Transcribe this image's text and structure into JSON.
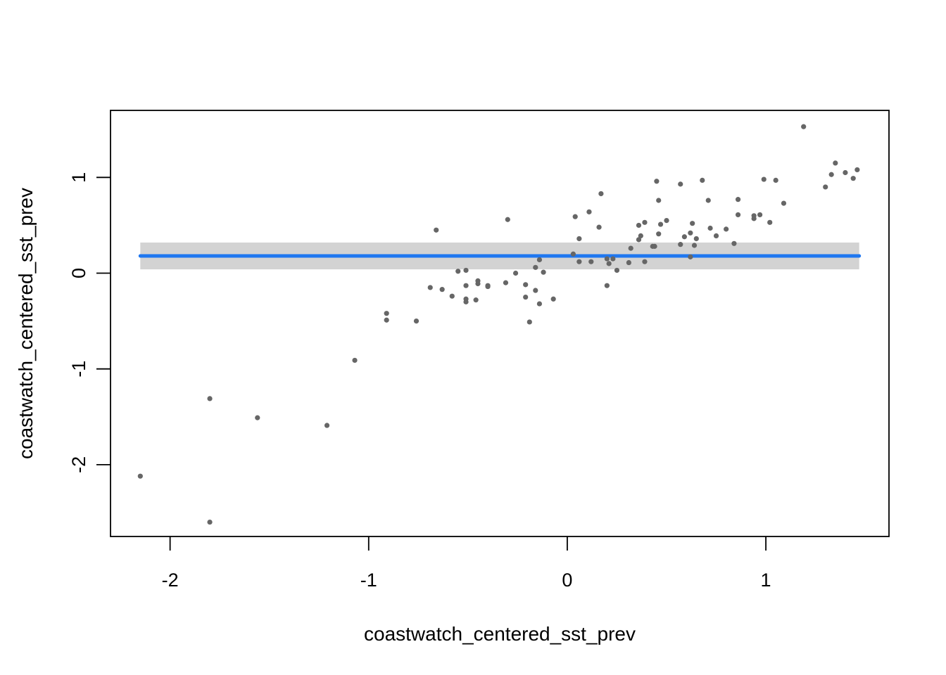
{
  "chart_data": {
    "type": "scatter",
    "title": "",
    "xlabel": "coastwatch_centered_sst_prev",
    "ylabel": "coastwatch_centered_sst_prev",
    "xlim": [
      -2.3,
      1.62
    ],
    "ylim": [
      -2.75,
      1.7
    ],
    "xticks": [
      -2,
      -1,
      0,
      1
    ],
    "yticks": [
      -2,
      -1,
      0,
      1
    ],
    "xtick_labels": [
      "-2",
      "-1",
      "0",
      "1"
    ],
    "ytick_labels": [
      "-2",
      "-1",
      "0",
      "1"
    ],
    "grid": false,
    "legend": "none",
    "point_color": "#666666",
    "fit_line_color": "#1f77f0",
    "band_color": "#d3d3d3",
    "fit_line": {
      "x": [
        -2.15,
        1.47
      ],
      "y": [
        0.18,
        0.18
      ]
    },
    "confidence_band": {
      "lower": 0.04,
      "upper": 0.32
    },
    "points": [
      [
        -2.15,
        -2.12
      ],
      [
        -1.8,
        -2.6
      ],
      [
        -1.8,
        -1.31
      ],
      [
        -1.56,
        -1.51
      ],
      [
        -1.21,
        -1.59
      ],
      [
        -1.07,
        -0.91
      ],
      [
        -0.91,
        -0.42
      ],
      [
        -0.91,
        -0.49
      ],
      [
        -0.76,
        -0.5
      ],
      [
        -0.66,
        0.45
      ],
      [
        -0.69,
        -0.15
      ],
      [
        -0.63,
        -0.17
      ],
      [
        -0.58,
        -0.24
      ],
      [
        -0.55,
        0.02
      ],
      [
        -0.51,
        0.03
      ],
      [
        -0.51,
        -0.13
      ],
      [
        -0.51,
        -0.27
      ],
      [
        -0.51,
        -0.3
      ],
      [
        -0.46,
        -0.28
      ],
      [
        -0.45,
        -0.08
      ],
      [
        -0.45,
        -0.11
      ],
      [
        -0.4,
        -0.13
      ],
      [
        -0.4,
        -0.14
      ],
      [
        -0.3,
        0.56
      ],
      [
        -0.31,
        -0.1
      ],
      [
        -0.26,
        0.0
      ],
      [
        -0.21,
        -0.12
      ],
      [
        -0.21,
        -0.25
      ],
      [
        -0.19,
        -0.51
      ],
      [
        -0.16,
        0.06
      ],
      [
        -0.16,
        -0.18
      ],
      [
        -0.14,
        0.14
      ],
      [
        -0.14,
        -0.32
      ],
      [
        -0.12,
        0.01
      ],
      [
        -0.07,
        -0.27
      ],
      [
        0.03,
        0.2
      ],
      [
        0.04,
        0.59
      ],
      [
        0.06,
        0.12
      ],
      [
        0.06,
        0.36
      ],
      [
        0.11,
        0.64
      ],
      [
        0.12,
        0.12
      ],
      [
        0.16,
        0.48
      ],
      [
        0.17,
        0.83
      ],
      [
        0.2,
        0.15
      ],
      [
        0.21,
        0.1
      ],
      [
        0.2,
        -0.13
      ],
      [
        0.23,
        0.15
      ],
      [
        0.25,
        0.03
      ],
      [
        0.32,
        0.26
      ],
      [
        0.31,
        0.11
      ],
      [
        0.36,
        0.35
      ],
      [
        0.36,
        0.5
      ],
      [
        0.37,
        0.39
      ],
      [
        0.39,
        0.53
      ],
      [
        0.39,
        0.12
      ],
      [
        0.43,
        0.28
      ],
      [
        0.45,
        0.96
      ],
      [
        0.44,
        0.28
      ],
      [
        0.46,
        0.76
      ],
      [
        0.46,
        0.41
      ],
      [
        0.47,
        0.51
      ],
      [
        0.5,
        0.55
      ],
      [
        0.57,
        0.93
      ],
      [
        0.57,
        0.3
      ],
      [
        0.59,
        0.38
      ],
      [
        0.62,
        0.17
      ],
      [
        0.62,
        0.42
      ],
      [
        0.63,
        0.52
      ],
      [
        0.64,
        0.29
      ],
      [
        0.65,
        0.36
      ],
      [
        0.68,
        0.97
      ],
      [
        0.71,
        0.76
      ],
      [
        0.72,
        0.47
      ],
      [
        0.75,
        0.39
      ],
      [
        0.8,
        0.46
      ],
      [
        0.84,
        0.31
      ],
      [
        0.86,
        0.77
      ],
      [
        0.86,
        0.61
      ],
      [
        0.94,
        0.6
      ],
      [
        0.94,
        0.57
      ],
      [
        0.97,
        0.61
      ],
      [
        0.99,
        0.98
      ],
      [
        1.02,
        0.53
      ],
      [
        1.05,
        0.97
      ],
      [
        1.09,
        0.73
      ],
      [
        1.19,
        1.53
      ],
      [
        1.3,
        0.9
      ],
      [
        1.33,
        1.03
      ],
      [
        1.35,
        1.15
      ],
      [
        1.4,
        1.05
      ],
      [
        1.44,
        0.99
      ],
      [
        1.46,
        1.08
      ]
    ]
  }
}
